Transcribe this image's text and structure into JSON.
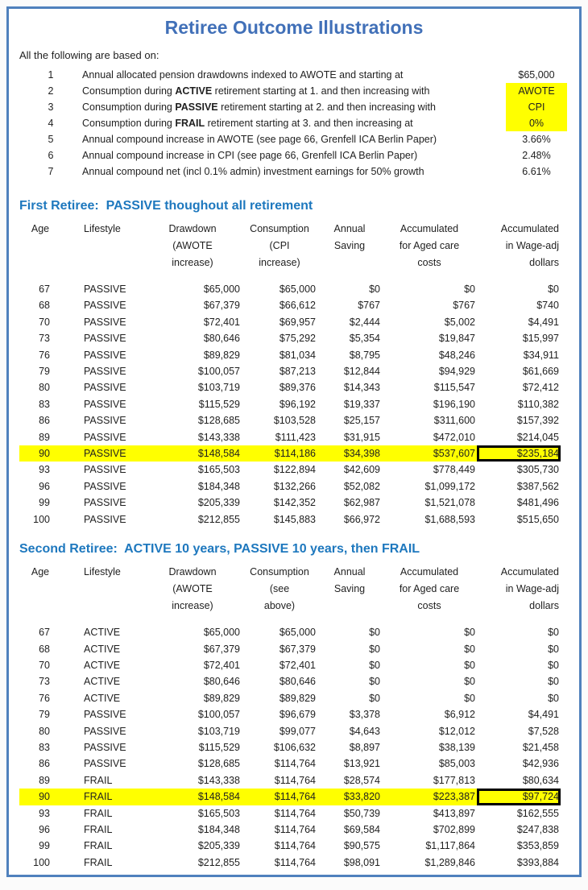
{
  "title": "Retiree Outcome Illustrations",
  "intro": "All the following are based on:",
  "colors": {
    "page_border": "#4f81bd",
    "title_blue": "#4170b8",
    "section_blue": "#1e78be",
    "highlight_yellow": "#ffff00",
    "box_border": "#000000"
  },
  "assumptions": [
    {
      "num": "1",
      "pre": "Annual allocated pension drawdowns indexed to AWOTE and starting at",
      "bold": "",
      "post": "",
      "value": "$65,000",
      "value_highlight": false
    },
    {
      "num": "2",
      "pre": "Consumption during ",
      "bold": "ACTIVE",
      "post": " retirement starting at 1. and then increasing with",
      "value": "AWOTE",
      "value_highlight": true
    },
    {
      "num": "3",
      "pre": "Consumption during ",
      "bold": "PASSIVE",
      "post": " retirement starting at 2. and  then increasing with",
      "value": "CPI",
      "value_highlight": true
    },
    {
      "num": "4",
      "pre": "Consumption during ",
      "bold": "FRAIL",
      "post": " retirement starting at 3. and  then increasing at",
      "value": "0%",
      "value_highlight": true
    },
    {
      "num": "5",
      "pre": "Annual compound increase in AWOTE (see page 66, Grenfell ICA Berlin Paper)",
      "bold": "",
      "post": "",
      "value": "3.66%",
      "value_highlight": false
    },
    {
      "num": "6",
      "pre": "Annual compound increase in CPI (see page 66, Grenfell ICA Berlin Paper)",
      "bold": "",
      "post": "",
      "value": "2.48%",
      "value_highlight": false
    },
    {
      "num": "7",
      "pre": "Annual compound net (incl 0.1% admin) investment earnings for 50% growth",
      "bold": "",
      "post": "",
      "value": "6.61%",
      "value_highlight": false
    }
  ],
  "tables": [
    {
      "heading": "First Retiree:  PASSIVE thoughout all retirement",
      "columns": [
        [
          "Age"
        ],
        [
          "Lifestyle"
        ],
        [
          "Drawdown",
          "(AWOTE",
          "increase)"
        ],
        [
          "Consumption",
          "(CPI",
          "increase)"
        ],
        [
          "Annual",
          "Saving"
        ],
        [
          "Accumulated",
          "for Aged care",
          "costs"
        ],
        [
          "Accumulated",
          "in Wage-adj",
          "dollars"
        ]
      ],
      "highlight_age": "90",
      "rows": [
        [
          "67",
          "PASSIVE",
          "$65,000",
          "$65,000",
          "$0",
          "$0",
          "$0"
        ],
        [
          "68",
          "PASSIVE",
          "$67,379",
          "$66,612",
          "$767",
          "$767",
          "$740"
        ],
        [
          "70",
          "PASSIVE",
          "$72,401",
          "$69,957",
          "$2,444",
          "$5,002",
          "$4,491"
        ],
        [
          "73",
          "PASSIVE",
          "$80,646",
          "$75,292",
          "$5,354",
          "$19,847",
          "$15,997"
        ],
        [
          "76",
          "PASSIVE",
          "$89,829",
          "$81,034",
          "$8,795",
          "$48,246",
          "$34,911"
        ],
        [
          "79",
          "PASSIVE",
          "$100,057",
          "$87,213",
          "$12,844",
          "$94,929",
          "$61,669"
        ],
        [
          "80",
          "PASSIVE",
          "$103,719",
          "$89,376",
          "$14,343",
          "$115,547",
          "$72,412"
        ],
        [
          "83",
          "PASSIVE",
          "$115,529",
          "$96,192",
          "$19,337",
          "$196,190",
          "$110,382"
        ],
        [
          "86",
          "PASSIVE",
          "$128,685",
          "$103,528",
          "$25,157",
          "$311,600",
          "$157,392"
        ],
        [
          "89",
          "PASSIVE",
          "$143,338",
          "$111,423",
          "$31,915",
          "$472,010",
          "$214,045"
        ],
        [
          "90",
          "PASSIVE",
          "$148,584",
          "$114,186",
          "$34,398",
          "$537,607",
          "$235,184"
        ],
        [
          "93",
          "PASSIVE",
          "$165,503",
          "$122,894",
          "$42,609",
          "$778,449",
          "$305,730"
        ],
        [
          "96",
          "PASSIVE",
          "$184,348",
          "$132,266",
          "$52,082",
          "$1,099,172",
          "$387,562"
        ],
        [
          "99",
          "PASSIVE",
          "$205,339",
          "$142,352",
          "$62,987",
          "$1,521,078",
          "$481,496"
        ],
        [
          "100",
          "PASSIVE",
          "$212,855",
          "$145,883",
          "$66,972",
          "$1,688,593",
          "$515,650"
        ]
      ]
    },
    {
      "heading": "Second Retiree:  ACTIVE 10 years, PASSIVE 10 years, then FRAIL",
      "columns": [
        [
          "Age"
        ],
        [
          "Lifestyle"
        ],
        [
          "Drawdown",
          "(AWOTE",
          "increase)"
        ],
        [
          "Consumption",
          "(see",
          "above)"
        ],
        [
          "Annual",
          "Saving"
        ],
        [
          "Accumulated",
          "for Aged care",
          "costs"
        ],
        [
          "Accumulated",
          "in Wage-adj",
          "dollars"
        ]
      ],
      "highlight_age": "90",
      "rows": [
        [
          "67",
          "ACTIVE",
          "$65,000",
          "$65,000",
          "$0",
          "$0",
          "$0"
        ],
        [
          "68",
          "ACTIVE",
          "$67,379",
          "$67,379",
          "$0",
          "$0",
          "$0"
        ],
        [
          "70",
          "ACTIVE",
          "$72,401",
          "$72,401",
          "$0",
          "$0",
          "$0"
        ],
        [
          "73",
          "ACTIVE",
          "$80,646",
          "$80,646",
          "$0",
          "$0",
          "$0"
        ],
        [
          "76",
          "ACTIVE",
          "$89,829",
          "$89,829",
          "$0",
          "$0",
          "$0"
        ],
        [
          "79",
          "PASSIVE",
          "$100,057",
          "$96,679",
          "$3,378",
          "$6,912",
          "$4,491"
        ],
        [
          "80",
          "PASSIVE",
          "$103,719",
          "$99,077",
          "$4,643",
          "$12,012",
          "$7,528"
        ],
        [
          "83",
          "PASSIVE",
          "$115,529",
          "$106,632",
          "$8,897",
          "$38,139",
          "$21,458"
        ],
        [
          "86",
          "PASSIVE",
          "$128,685",
          "$114,764",
          "$13,921",
          "$85,003",
          "$42,936"
        ],
        [
          "89",
          "FRAIL",
          "$143,338",
          "$114,764",
          "$28,574",
          "$177,813",
          "$80,634"
        ],
        [
          "90",
          "FRAIL",
          "$148,584",
          "$114,764",
          "$33,820",
          "$223,387",
          "$97,724"
        ],
        [
          "93",
          "FRAIL",
          "$165,503",
          "$114,764",
          "$50,739",
          "$413,897",
          "$162,555"
        ],
        [
          "96",
          "FRAIL",
          "$184,348",
          "$114,764",
          "$69,584",
          "$702,899",
          "$247,838"
        ],
        [
          "99",
          "FRAIL",
          "$205,339",
          "$114,764",
          "$90,575",
          "$1,117,864",
          "$353,859"
        ],
        [
          "100",
          "FRAIL",
          "$212,855",
          "$114,764",
          "$98,091",
          "$1,289,846",
          "$393,884"
        ]
      ]
    }
  ]
}
